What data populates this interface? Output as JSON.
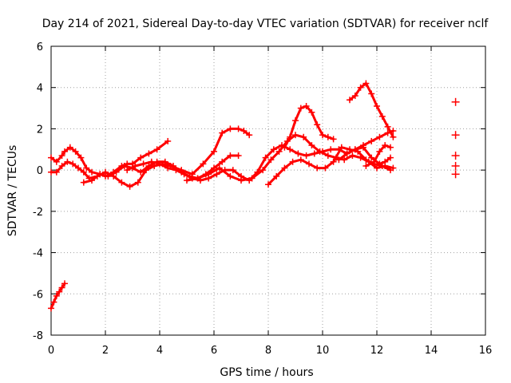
{
  "chart_data": {
    "type": "scatter",
    "title": "Day 214 of 2021, Sidereal Day-to-day VTEC variation (SDTVAR) for receiver nclf",
    "xlabel": "GPS time / hours",
    "ylabel": "SDTVAR / TECUs",
    "xlim": [
      0,
      16
    ],
    "ylim": [
      -8,
      6
    ],
    "xticks": [
      0,
      2,
      4,
      6,
      8,
      10,
      12,
      14,
      16
    ],
    "yticks": [
      -8,
      -6,
      -4,
      -2,
      0,
      2,
      4,
      6
    ],
    "grid": true,
    "color": "#ff0000",
    "series": [
      {
        "name": "s1",
        "x": [
          0.0,
          0.1,
          0.2,
          0.3,
          0.4,
          0.5
        ],
        "y": [
          -6.7,
          -6.4,
          -6.1,
          -5.9,
          -5.7,
          -5.5
        ]
      },
      {
        "name": "s2",
        "x": [
          0.0,
          0.2,
          0.4,
          0.5,
          0.7,
          0.9,
          1.1,
          1.3,
          1.5,
          1.8,
          2.0,
          2.3,
          2.6,
          2.8,
          3.0,
          3.3,
          3.6,
          3.9,
          4.3
        ],
        "y": [
          0.6,
          0.4,
          0.7,
          0.9,
          1.1,
          0.9,
          0.6,
          0.1,
          -0.1,
          -0.2,
          -0.3,
          -0.1,
          0.2,
          0.3,
          0.3,
          0.6,
          0.8,
          1.0,
          1.4
        ]
      },
      {
        "name": "s3",
        "x": [
          0.0,
          0.2,
          0.4,
          0.6,
          0.8,
          1.0,
          1.2,
          1.4,
          1.7,
          2.0,
          2.3,
          2.6,
          2.9,
          3.2,
          3.5,
          3.8,
          4.1,
          4.4,
          4.8,
          5.2,
          5.6,
          6.0,
          6.3,
          6.6,
          6.9,
          7.1,
          7.3
        ],
        "y": [
          -0.1,
          -0.1,
          0.2,
          0.4,
          0.3,
          0.1,
          -0.1,
          -0.4,
          -0.3,
          -0.1,
          -0.3,
          -0.6,
          -0.8,
          -0.6,
          0.0,
          0.2,
          0.3,
          0.2,
          0.0,
          -0.2,
          0.3,
          0.9,
          1.8,
          2.0,
          2.0,
          1.9,
          1.7
        ]
      },
      {
        "name": "s4",
        "x": [
          1.2,
          1.5,
          1.8,
          2.1,
          2.4,
          2.7,
          3.0,
          3.3,
          3.6,
          3.9,
          4.2,
          4.5,
          4.8,
          5.1,
          5.4,
          5.7,
          6.0,
          6.3,
          6.6,
          6.9
        ],
        "y": [
          -0.6,
          -0.5,
          -0.2,
          -0.3,
          -0.1,
          0.2,
          0.1,
          -0.1,
          0.2,
          0.4,
          0.4,
          0.2,
          -0.1,
          -0.3,
          -0.4,
          -0.2,
          0.1,
          0.4,
          0.7,
          0.7
        ]
      },
      {
        "name": "s5",
        "x": [
          2.8,
          3.1,
          3.4,
          3.7,
          4.0,
          4.3,
          4.6,
          4.9,
          5.2,
          5.5,
          5.8,
          6.1,
          6.4,
          6.7,
          7.0,
          7.3,
          7.6,
          7.9,
          8.2,
          8.5,
          8.8,
          9.1,
          9.4,
          9.7,
          10.0,
          10.3,
          10.6,
          10.9,
          11.2,
          11.5,
          11.8,
          12.1,
          12.4,
          12.6
        ],
        "y": [
          0.0,
          0.2,
          0.3,
          0.4,
          0.3,
          0.1,
          0.0,
          -0.2,
          -0.4,
          -0.5,
          -0.4,
          -0.2,
          0.0,
          0.0,
          -0.3,
          -0.5,
          -0.1,
          0.6,
          1.0,
          1.2,
          1.0,
          0.8,
          0.7,
          0.8,
          0.9,
          1.0,
          1.0,
          0.8,
          1.0,
          1.2,
          1.4,
          1.6,
          1.8,
          1.9
        ]
      },
      {
        "name": "s6",
        "x": [
          5.0,
          5.4,
          5.8,
          6.2,
          6.6,
          7.0,
          7.4,
          7.8,
          8.1,
          8.4,
          8.7,
          9.0,
          9.3,
          9.6,
          9.9,
          10.2,
          10.5,
          10.8,
          11.1,
          11.4,
          11.7,
          12.0,
          12.3,
          12.6
        ],
        "y": [
          -0.5,
          -0.4,
          -0.2,
          0.1,
          -0.3,
          -0.5,
          -0.4,
          0.0,
          0.5,
          0.9,
          1.4,
          1.7,
          1.6,
          1.2,
          0.9,
          0.7,
          0.6,
          0.5,
          0.7,
          0.6,
          0.4,
          0.1,
          0.2,
          0.1
        ]
      },
      {
        "name": "s7",
        "x": [
          8.0,
          8.3,
          8.6,
          8.9,
          9.2,
          9.5,
          9.8,
          10.1,
          10.4,
          10.7,
          11.0,
          11.3,
          11.6,
          11.9,
          12.2,
          12.5
        ],
        "y": [
          -0.7,
          -0.3,
          0.1,
          0.4,
          0.5,
          0.3,
          0.1,
          0.1,
          0.4,
          1.1,
          1.0,
          0.9,
          0.5,
          0.3,
          0.2,
          0.0
        ]
      },
      {
        "name": "s8",
        "x": [
          8.6,
          8.8,
          9.0,
          9.2,
          9.4,
          9.6,
          9.8,
          10.0,
          10.2,
          10.4
        ],
        "y": [
          1.1,
          1.6,
          2.4,
          3.0,
          3.1,
          2.8,
          2.2,
          1.7,
          1.6,
          1.5
        ]
      },
      {
        "name": "s9",
        "x": [
          11.0,
          11.2,
          11.4,
          11.6,
          11.8,
          12.0,
          12.2,
          12.4,
          12.6
        ],
        "y": [
          3.4,
          3.6,
          4.0,
          4.2,
          3.7,
          3.1,
          2.6,
          2.1,
          1.6
        ]
      },
      {
        "name": "s10",
        "x": [
          10.6,
          10.9,
          11.2,
          11.5,
          11.8,
          12.1,
          12.3,
          12.5
        ],
        "y": [
          0.5,
          0.8,
          1.0,
          1.1,
          0.6,
          0.3,
          0.4,
          0.6
        ]
      },
      {
        "name": "s11",
        "x": [
          11.6,
          11.9,
          12.1,
          12.3,
          12.5
        ],
        "y": [
          0.2,
          0.4,
          0.9,
          1.2,
          1.1
        ]
      }
    ],
    "points": [
      {
        "x": 14.9,
        "y": 3.3
      },
      {
        "x": 14.9,
        "y": 1.7
      },
      {
        "x": 14.9,
        "y": 0.7
      },
      {
        "x": 14.9,
        "y": 0.2
      },
      {
        "x": 14.9,
        "y": -0.2
      }
    ]
  }
}
